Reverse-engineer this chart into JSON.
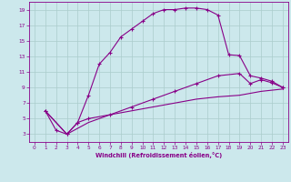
{
  "xlabel": "Windchill (Refroidissement éolien,°C)",
  "background_color": "#cce8ec",
  "grid_color": "#aacccc",
  "line_color": "#880088",
  "xlim": [
    -0.5,
    23.5
  ],
  "ylim": [
    2.0,
    20.0
  ],
  "xticks": [
    0,
    1,
    2,
    3,
    4,
    5,
    6,
    7,
    8,
    9,
    10,
    11,
    12,
    13,
    14,
    15,
    16,
    17,
    18,
    19,
    20,
    21,
    22,
    23
  ],
  "yticks": [
    3,
    5,
    7,
    9,
    11,
    13,
    15,
    17,
    19
  ],
  "curve1_x": [
    1,
    2,
    3,
    4,
    5,
    6,
    7,
    8,
    9,
    10,
    11,
    12,
    13,
    14,
    15,
    16,
    17,
    18,
    19,
    20,
    21,
    22,
    23
  ],
  "curve1_y": [
    6.0,
    3.5,
    3.0,
    4.5,
    8.0,
    12.0,
    13.5,
    15.5,
    16.5,
    17.5,
    18.5,
    19.0,
    19.0,
    19.2,
    19.2,
    19.0,
    18.3,
    13.2,
    13.1,
    10.5,
    10.2,
    9.8,
    9.0
  ],
  "curve2_x": [
    1,
    3,
    4,
    5,
    7,
    9,
    11,
    13,
    15,
    17,
    19,
    20,
    21,
    22,
    23
  ],
  "curve2_y": [
    6.0,
    3.0,
    4.5,
    5.0,
    5.5,
    6.5,
    7.5,
    8.5,
    9.5,
    10.5,
    10.8,
    9.5,
    10.0,
    9.6,
    9.0
  ],
  "curve3_x": [
    1,
    3,
    5,
    7,
    9,
    11,
    13,
    15,
    17,
    19,
    21,
    23
  ],
  "curve3_y": [
    6.0,
    3.0,
    4.5,
    5.5,
    6.0,
    6.5,
    7.0,
    7.5,
    7.8,
    8.0,
    8.5,
    8.8
  ]
}
